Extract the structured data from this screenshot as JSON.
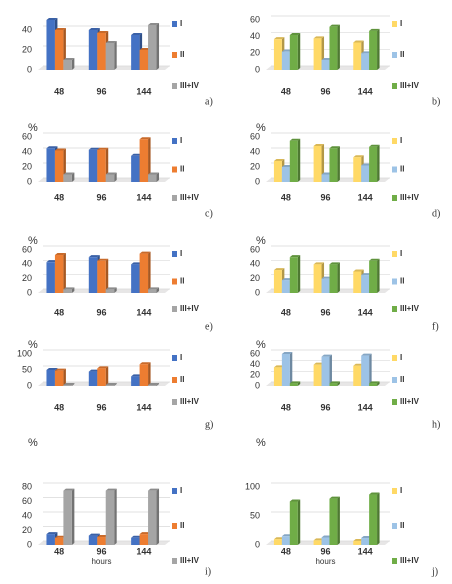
{
  "chart_data": [
    {
      "type": "bar",
      "label": "a)",
      "categories": [
        "48",
        "96",
        "144"
      ],
      "ylim": [
        0,
        50
      ],
      "yticks": [
        0,
        20,
        40
      ],
      "series": [
        {
          "name": "I",
          "color": "#4472c4",
          "values": [
            50,
            40,
            35
          ]
        },
        {
          "name": "II",
          "color": "#ed7d31",
          "values": [
            40,
            37,
            20
          ]
        },
        {
          "name": "III+IV",
          "color": "#a5a5a5",
          "values": [
            10,
            27,
            45
          ]
        }
      ]
    },
    {
      "type": "bar",
      "label": "b)",
      "categories": [
        "48",
        "96",
        "144"
      ],
      "ylim": [
        0,
        60
      ],
      "yticks": [
        0,
        20,
        40,
        60
      ],
      "series": [
        {
          "name": "I",
          "color": "#ffd966",
          "values": [
            37,
            38,
            33
          ]
        },
        {
          "name": "II",
          "color": "#9dc3e6",
          "values": [
            22,
            12,
            20
          ]
        },
        {
          "name": "III+IV",
          "color": "#70ad47",
          "values": [
            42,
            52,
            47
          ]
        }
      ]
    },
    {
      "type": "bar",
      "label": "c)",
      "ylabel": "%",
      "categories": [
        "48",
        "96",
        "144"
      ],
      "ylim": [
        0,
        60
      ],
      "yticks": [
        0,
        20,
        40,
        60
      ],
      "series": [
        {
          "name": "I",
          "color": "#4472c4",
          "values": [
            45,
            43,
            35
          ]
        },
        {
          "name": "II",
          "color": "#ed7d31",
          "values": [
            42,
            43,
            57
          ]
        },
        {
          "name": "III+IV",
          "color": "#a5a5a5",
          "values": [
            10,
            10,
            10
          ]
        }
      ]
    },
    {
      "type": "bar",
      "label": "d)",
      "ylabel": "%",
      "categories": [
        "48",
        "96",
        "144"
      ],
      "ylim": [
        0,
        60
      ],
      "yticks": [
        0,
        20,
        40,
        60
      ],
      "series": [
        {
          "name": "I",
          "color": "#ffd966",
          "values": [
            28,
            48,
            33
          ]
        },
        {
          "name": "II",
          "color": "#9dc3e6",
          "values": [
            20,
            10,
            22
          ]
        },
        {
          "name": "III+IV",
          "color": "#70ad47",
          "values": [
            55,
            45,
            47
          ]
        }
      ]
    },
    {
      "type": "bar",
      "label": "e)",
      "ylabel": "%",
      "categories": [
        "48",
        "96",
        "144"
      ],
      "ylim": [
        0,
        60
      ],
      "yticks": [
        0,
        20,
        40,
        60
      ],
      "series": [
        {
          "name": "I",
          "color": "#4472c4",
          "values": [
            43,
            50,
            40
          ]
        },
        {
          "name": "II",
          "color": "#ed7d31",
          "values": [
            53,
            45,
            55
          ]
        },
        {
          "name": "III+IV",
          "color": "#a5a5a5",
          "values": [
            5,
            5,
            5
          ]
        }
      ]
    },
    {
      "type": "bar",
      "label": "f)",
      "ylabel": "%",
      "categories": [
        "48",
        "96",
        "144"
      ],
      "ylim": [
        0,
        60
      ],
      "yticks": [
        0,
        20,
        40,
        60
      ],
      "series": [
        {
          "name": "I",
          "color": "#ffd966",
          "values": [
            32,
            40,
            30
          ]
        },
        {
          "name": "II",
          "color": "#9dc3e6",
          "values": [
            18,
            20,
            25
          ]
        },
        {
          "name": "III+IV",
          "color": "#70ad47",
          "values": [
            50,
            40,
            45
          ]
        }
      ]
    },
    {
      "type": "bar",
      "label": "g)",
      "ylabel": "%",
      "categories": [
        "48",
        "96",
        "144"
      ],
      "ylim": [
        0,
        100
      ],
      "yticks": [
        0,
        50,
        100
      ],
      "series": [
        {
          "name": "I",
          "color": "#4472c4",
          "values": [
            50,
            45,
            30
          ]
        },
        {
          "name": "II",
          "color": "#ed7d31",
          "values": [
            48,
            55,
            68
          ]
        },
        {
          "name": "III+IV",
          "color": "#a5a5a5",
          "values": [
            3,
            3,
            3
          ]
        }
      ]
    },
    {
      "type": "bar",
      "label": "h)",
      "ylabel": "%",
      "categories": [
        "48",
        "96",
        "144"
      ],
      "ylim": [
        0,
        60
      ],
      "yticks": [
        0,
        20,
        40,
        60
      ],
      "series": [
        {
          "name": "I",
          "color": "#ffd966",
          "values": [
            35,
            40,
            38
          ]
        },
        {
          "name": "II",
          "color": "#9dc3e6",
          "values": [
            60,
            55,
            57
          ]
        },
        {
          "name": "III+IV",
          "color": "#70ad47",
          "values": [
            5,
            5,
            5
          ]
        }
      ]
    },
    {
      "type": "bar",
      "label": "i)",
      "ylabel": "%",
      "xlabel": "hours",
      "categories": [
        "48",
        "96",
        "144"
      ],
      "ylim": [
        0,
        80
      ],
      "yticks": [
        0,
        20,
        40,
        60,
        80
      ],
      "series": [
        {
          "name": "I",
          "color": "#4472c4",
          "values": [
            15,
            13,
            10
          ]
        },
        {
          "name": "II",
          "color": "#ed7d31",
          "values": [
            10,
            11,
            15
          ]
        },
        {
          "name": "III+IV",
          "color": "#a5a5a5",
          "values": [
            75,
            75,
            75
          ]
        }
      ]
    },
    {
      "type": "bar",
      "label": "j)",
      "ylabel": "%",
      "xlabel": "hours",
      "categories": [
        "48",
        "96",
        "144"
      ],
      "ylim": [
        0,
        100
      ],
      "yticks": [
        0,
        50,
        100
      ],
      "series": [
        {
          "name": "I",
          "color": "#ffd966",
          "values": [
            10,
            8,
            7
          ]
        },
        {
          "name": "II",
          "color": "#9dc3e6",
          "values": [
            15,
            13,
            12
          ]
        },
        {
          "name": "III+IV",
          "color": "#70ad47",
          "values": [
            75,
            80,
            87
          ]
        }
      ]
    }
  ]
}
